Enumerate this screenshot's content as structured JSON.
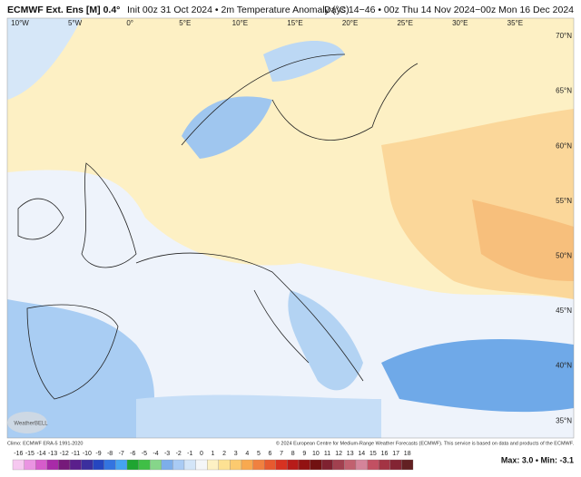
{
  "header": {
    "title": "ECMWF Ext. Ens [M] 0.4°",
    "subtitle": "Init 00z 31 Oct 2024 • 2m Temperature Anomaly (°C)",
    "period": "Days 14−46 • 00z Thu 14 Nov 2024−00z Mon 16 Dec 2024"
  },
  "map": {
    "longitude_labels": [
      "10°W",
      "5°W",
      "0°",
      "5°E",
      "10°E",
      "15°E",
      "20°E",
      "25°E",
      "30°E",
      "35°E"
    ],
    "latitude_labels": [
      "70°N",
      "65°N",
      "60°N",
      "55°N",
      "50°N",
      "45°N",
      "40°N",
      "35°N"
    ]
  },
  "footer": {
    "climo": "Climo: ECMWF ERA-5 1991-2020",
    "copyright": "© 2024 European Centre for Medium-Range Weather Forecasts (ECMWF). This service is based on data and products of the ECMWF.",
    "logo": "WeatherBELL"
  },
  "colorbar": {
    "ticks": [
      -16,
      -15,
      -14,
      -13,
      -12,
      -11,
      -10,
      -9,
      -8,
      -7,
      -6,
      -5,
      -4,
      -3,
      -2,
      -1,
      0,
      1,
      2,
      3,
      4,
      5,
      6,
      7,
      8,
      9,
      10,
      11,
      12,
      13,
      14,
      15,
      16,
      17,
      18
    ],
    "colors": [
      "#f6c8f0",
      "#ea94e2",
      "#d65ccb",
      "#a82aa8",
      "#761a7a",
      "#5a1f8c",
      "#3b2f9e",
      "#2546c0",
      "#3374e0",
      "#45a3f0",
      "#1fa531",
      "#3fbf46",
      "#86d68a",
      "#7daeea",
      "#a9cbf4",
      "#d3e5f8",
      "#f4f6f8",
      "#fdf1c4",
      "#fde193",
      "#fcca6f",
      "#f8a94f",
      "#f08140",
      "#e75a2f",
      "#d73221",
      "#b71b19",
      "#921212",
      "#711111",
      "#7f2130",
      "#a1404f",
      "#c1606f",
      "#d4849a",
      "#c25062",
      "#a33444",
      "#832433",
      "#622022"
    ]
  },
  "stats": "Max: 3.0 • Min: -3.1"
}
